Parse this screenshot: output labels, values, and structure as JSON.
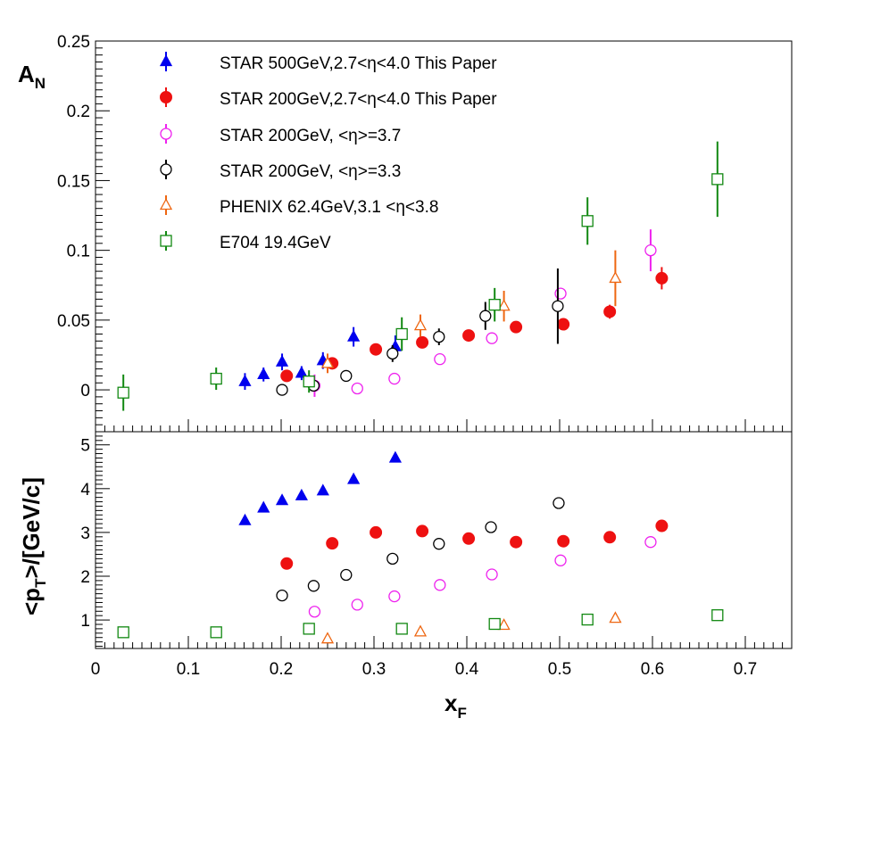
{
  "chart_data": [
    {
      "type": "scatter",
      "panel": "top",
      "ylabel_main": "A",
      "ylabel_sub": "N",
      "xlim": [
        0,
        0.75
      ],
      "ylim": [
        -0.03,
        0.25
      ],
      "yticks": [
        0,
        0.05,
        0.1,
        0.15,
        0.2,
        0.25
      ],
      "ytick_labels": [
        "0",
        "0.05",
        "0.1",
        "0.15",
        "0.2",
        "0.25"
      ],
      "legend_position": "top-left",
      "series": [
        {
          "name": "STAR 500GeV,2.7<η<4.0 This Paper",
          "marker": "triangle-filled",
          "color": "#0000ee",
          "points": [
            {
              "x": 0.161,
              "y": 0.006,
              "err": 0.006
            },
            {
              "x": 0.181,
              "y": 0.011,
              "err": 0.005
            },
            {
              "x": 0.201,
              "y": 0.02,
              "err": 0.006
            },
            {
              "x": 0.222,
              "y": 0.012,
              "err": 0.005
            },
            {
              "x": 0.245,
              "y": 0.021,
              "err": 0.006
            },
            {
              "x": 0.278,
              "y": 0.038,
              "err": 0.007
            },
            {
              "x": 0.323,
              "y": 0.031,
              "err": 0.008
            }
          ]
        },
        {
          "name": "STAR 200GeV,2.7<η<4.0 This Paper",
          "marker": "circle-filled",
          "color": "#ee1111",
          "points": [
            {
              "x": 0.206,
              "y": 0.01,
              "err": 0.003
            },
            {
              "x": 0.255,
              "y": 0.019,
              "err": 0.003
            },
            {
              "x": 0.302,
              "y": 0.029,
              "err": 0.003
            },
            {
              "x": 0.352,
              "y": 0.034,
              "err": 0.003
            },
            {
              "x": 0.402,
              "y": 0.039,
              "err": 0.003
            },
            {
              "x": 0.453,
              "y": 0.045,
              "err": 0.003
            },
            {
              "x": 0.504,
              "y": 0.047,
              "err": 0.004
            },
            {
              "x": 0.554,
              "y": 0.056,
              "err": 0.005
            },
            {
              "x": 0.61,
              "y": 0.08,
              "err": 0.008
            }
          ]
        },
        {
          "name": "STAR 200GeV, <η>=3.7",
          "marker": "circle-open",
          "color": "#ee22ee",
          "points": [
            {
              "x": 0.236,
              "y": 0.003,
              "err": 0.008
            },
            {
              "x": 0.282,
              "y": 0.001,
              "err": 0.003
            },
            {
              "x": 0.322,
              "y": 0.008,
              "err": 0.003
            },
            {
              "x": 0.371,
              "y": 0.022,
              "err": 0.003
            },
            {
              "x": 0.427,
              "y": 0.037,
              "err": 0.003
            },
            {
              "x": 0.501,
              "y": 0.069,
              "err": 0.004
            },
            {
              "x": 0.598,
              "y": 0.1,
              "err": 0.015
            }
          ]
        },
        {
          "name": "STAR 200GeV, <η>=3.3",
          "marker": "circle-open",
          "color": "#000000",
          "points": [
            {
              "x": 0.201,
              "y": 0.0,
              "err": 0.002
            },
            {
              "x": 0.235,
              "y": 0.003,
              "err": 0.004
            },
            {
              "x": 0.27,
              "y": 0.01,
              "err": 0.003
            },
            {
              "x": 0.32,
              "y": 0.026,
              "err": 0.006
            },
            {
              "x": 0.37,
              "y": 0.038,
              "err": 0.006
            },
            {
              "x": 0.42,
              "y": 0.053,
              "err": 0.01
            },
            {
              "x": 0.498,
              "y": 0.06,
              "err": 0.027
            }
          ]
        },
        {
          "name": "PHENIX 62.4GeV,3.1 <η<3.8",
          "marker": "triangle-open",
          "color": "#ee6611",
          "points": [
            {
              "x": 0.25,
              "y": 0.019,
              "err": 0.007
            },
            {
              "x": 0.35,
              "y": 0.046,
              "err": 0.008
            },
            {
              "x": 0.44,
              "y": 0.06,
              "err": 0.011
            },
            {
              "x": 0.56,
              "y": 0.08,
              "err": 0.02
            }
          ]
        },
        {
          "name": "E704 19.4GeV",
          "marker": "square-open",
          "color": "#118811",
          "points": [
            {
              "x": 0.03,
              "y": -0.002,
              "err": 0.013
            },
            {
              "x": 0.13,
              "y": 0.008,
              "err": 0.008
            },
            {
              "x": 0.23,
              "y": 0.006,
              "err": 0.008
            },
            {
              "x": 0.33,
              "y": 0.04,
              "err": 0.012
            },
            {
              "x": 0.43,
              "y": 0.061,
              "err": 0.012
            },
            {
              "x": 0.53,
              "y": 0.121,
              "err": 0.017
            },
            {
              "x": 0.67,
              "y": 0.151,
              "err": 0.027
            }
          ]
        }
      ]
    },
    {
      "type": "scatter",
      "panel": "bottom",
      "ylabel_main": "<p",
      "ylabel_sub": "T",
      "ylabel_tail": ">/[GeV/c]",
      "xlabel_main": "x",
      "xlabel_sub": "F",
      "xlim": [
        0,
        0.75
      ],
      "ylim": [
        0.35,
        5.3
      ],
      "xticks": [
        0,
        0.1,
        0.2,
        0.3,
        0.4,
        0.5,
        0.6,
        0.7
      ],
      "xtick_labels": [
        "0",
        "0.1",
        "0.2",
        "0.3",
        "0.4",
        "0.5",
        "0.6",
        "0.7"
      ],
      "yticks": [
        1,
        2,
        3,
        4,
        5
      ],
      "ytick_labels": [
        "1",
        "2",
        "3",
        "4",
        "5"
      ],
      "series": [
        {
          "name": "STAR 500GeV,2.7<η<4.0 This Paper",
          "marker": "triangle-filled",
          "color": "#0000ee",
          "points": [
            {
              "x": 0.161,
              "y": 3.27
            },
            {
              "x": 0.181,
              "y": 3.56
            },
            {
              "x": 0.201,
              "y": 3.73
            },
            {
              "x": 0.222,
              "y": 3.84
            },
            {
              "x": 0.245,
              "y": 3.95
            },
            {
              "x": 0.278,
              "y": 4.21
            },
            {
              "x": 0.323,
              "y": 4.7
            }
          ]
        },
        {
          "name": "STAR 200GeV,2.7<η<4.0 This Paper",
          "marker": "circle-filled",
          "color": "#ee1111",
          "points": [
            {
              "x": 0.206,
              "y": 2.29
            },
            {
              "x": 0.255,
              "y": 2.75
            },
            {
              "x": 0.302,
              "y": 3.0
            },
            {
              "x": 0.352,
              "y": 3.03
            },
            {
              "x": 0.402,
              "y": 2.86
            },
            {
              "x": 0.453,
              "y": 2.78
            },
            {
              "x": 0.504,
              "y": 2.8
            },
            {
              "x": 0.554,
              "y": 2.89
            },
            {
              "x": 0.61,
              "y": 3.15
            }
          ]
        },
        {
          "name": "STAR 200GeV, <η>=3.7",
          "marker": "circle-open",
          "color": "#ee22ee",
          "points": [
            {
              "x": 0.236,
              "y": 1.19
            },
            {
              "x": 0.282,
              "y": 1.35
            },
            {
              "x": 0.322,
              "y": 1.54
            },
            {
              "x": 0.371,
              "y": 1.8
            },
            {
              "x": 0.427,
              "y": 2.04
            },
            {
              "x": 0.501,
              "y": 2.36
            },
            {
              "x": 0.598,
              "y": 2.78
            }
          ]
        },
        {
          "name": "STAR 200GeV, <η>=3.3",
          "marker": "circle-open",
          "color": "#000000",
          "points": [
            {
              "x": 0.201,
              "y": 1.56
            },
            {
              "x": 0.235,
              "y": 1.78
            },
            {
              "x": 0.27,
              "y": 2.03
            },
            {
              "x": 0.32,
              "y": 2.4
            },
            {
              "x": 0.37,
              "y": 2.74
            },
            {
              "x": 0.426,
              "y": 3.12
            },
            {
              "x": 0.499,
              "y": 3.67
            }
          ]
        },
        {
          "name": "PHENIX 62.4GeV,3.1 <η<3.8",
          "marker": "triangle-open",
          "color": "#ee6611",
          "points": [
            {
              "x": 0.25,
              "y": 0.57
            },
            {
              "x": 0.35,
              "y": 0.73
            },
            {
              "x": 0.44,
              "y": 0.88
            },
            {
              "x": 0.56,
              "y": 1.04
            }
          ]
        },
        {
          "name": "E704 19.4GeV",
          "marker": "square-open",
          "color": "#118811",
          "points": [
            {
              "x": 0.03,
              "y": 0.72
            },
            {
              "x": 0.13,
              "y": 0.72
            },
            {
              "x": 0.23,
              "y": 0.8
            },
            {
              "x": 0.33,
              "y": 0.8
            },
            {
              "x": 0.43,
              "y": 0.91
            },
            {
              "x": 0.53,
              "y": 1.01
            },
            {
              "x": 0.67,
              "y": 1.11
            }
          ]
        }
      ]
    }
  ]
}
